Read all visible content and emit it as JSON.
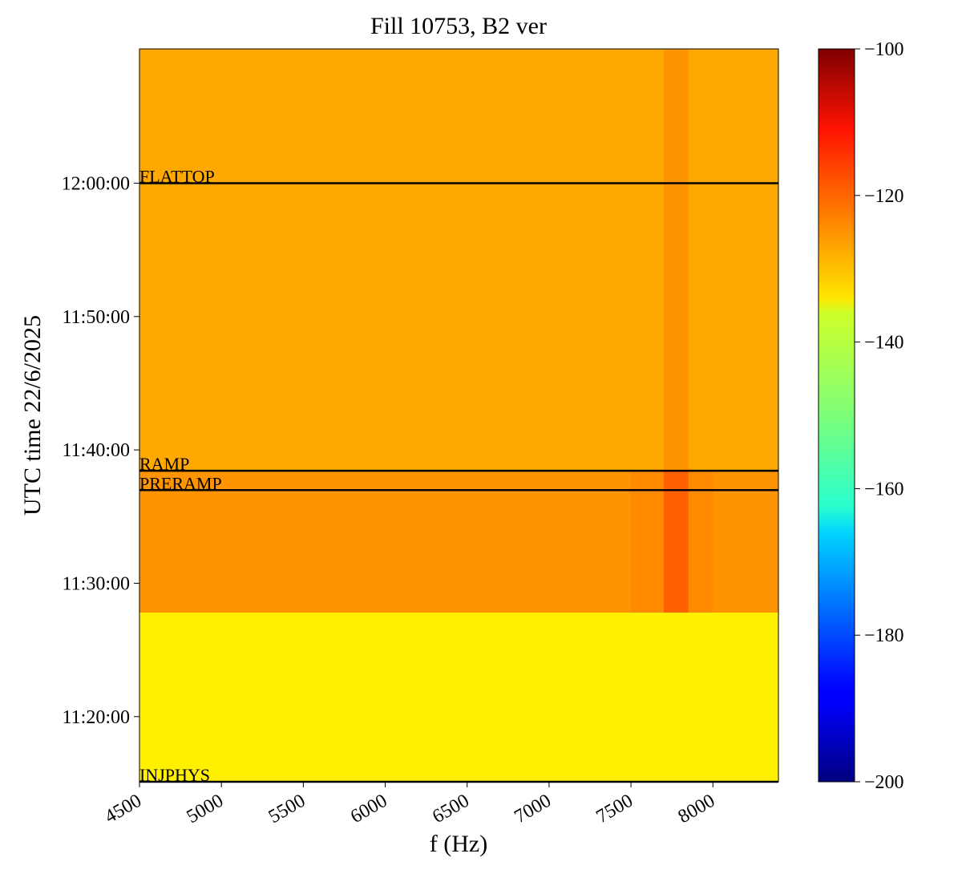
{
  "chart_data": {
    "type": "heatmap",
    "title": "Fill 10753, B2 ver",
    "xlabel": "f (Hz)",
    "ylabel": "UTC time 22/6/2025",
    "xbins": [
      4500,
      5000,
      5500,
      6000,
      6500,
      7000,
      7500,
      7700,
      7850,
      8000,
      8400
    ],
    "ybins": [
      40507,
      41270,
      41906,
      43804
    ],
    "values": [
      [
        -136,
        -136,
        -136,
        -136,
        -136,
        -136,
        -136,
        -136,
        -136,
        -136
      ],
      [
        -127,
        -127,
        -127,
        -127,
        -127,
        -127,
        -126,
        -122,
        -126,
        -127
      ],
      [
        -129,
        -129,
        -129,
        -129,
        -129,
        -129,
        -129,
        -127,
        -129,
        -129
      ]
    ],
    "xlim": [
      4500,
      8400
    ],
    "ylim": [
      40507,
      43804
    ],
    "xticks": [
      4500,
      5000,
      5500,
      6000,
      6500,
      7000,
      7500,
      8000
    ],
    "yticks": [
      {
        "value": 40800,
        "label": "11:20:00"
      },
      {
        "value": 41400,
        "label": "11:30:00"
      },
      {
        "value": 42000,
        "label": "11:40:00"
      },
      {
        "value": 42600,
        "label": "11:50:00"
      },
      {
        "value": 43200,
        "label": "12:00:00"
      }
    ],
    "colormap": "jet",
    "clim": [
      -200,
      -100
    ],
    "cticks": [
      {
        "value": -200,
        "label": "−200"
      },
      {
        "value": -180,
        "label": "−180"
      },
      {
        "value": -160,
        "label": "−160"
      },
      {
        "value": -140,
        "label": "−140"
      },
      {
        "value": -120,
        "label": "−120"
      },
      {
        "value": -100,
        "label": "−100"
      }
    ],
    "events": [
      {
        "label": "FLATTOP",
        "time": 43200
      },
      {
        "label": "RAMP",
        "time": 41906
      },
      {
        "label": "PRERAMP",
        "time": 41819
      },
      {
        "label": "INJPHYS",
        "time": 40507
      }
    ]
  }
}
